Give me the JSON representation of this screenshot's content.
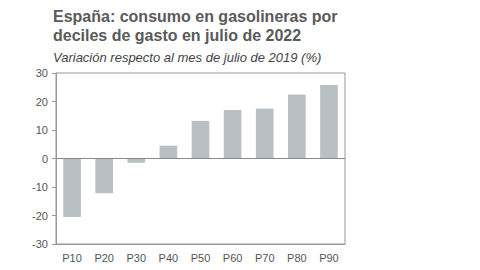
{
  "chart_data": {
    "type": "bar",
    "title": "España: consumo en gasolineras por deciles de gasto en julio de 2022",
    "subtitle": "Variación respecto al mes de julio de 2019 (%)",
    "categories": [
      "P10",
      "P20",
      "P30",
      "P40",
      "P50",
      "P60",
      "P70",
      "P80",
      "P90"
    ],
    "values": [
      -20.5,
      -12.2,
      -1.5,
      4.5,
      13.2,
      17.0,
      17.5,
      22.5,
      25.8
    ],
    "color": "#b9c0c4",
    "ylim": [
      -30,
      30
    ],
    "yticks": [
      -30,
      -20,
      -10,
      0,
      10,
      20,
      30
    ],
    "grid": false
  }
}
